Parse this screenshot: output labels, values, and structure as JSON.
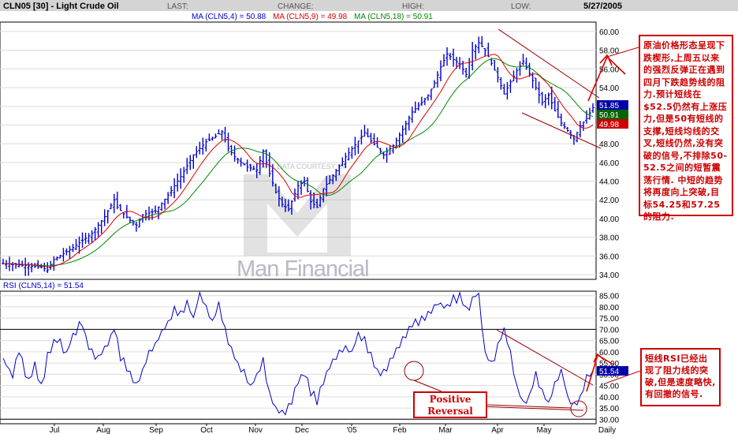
{
  "header": {
    "symbol": "CLN05 [30] - Light Crude Oil",
    "last_label": "LAST:",
    "change_label": "CHANGE:",
    "high_label": "HIGH:",
    "low_label": "LOW:",
    "date": "5/27/2005",
    "ma4_text": "MA (CLN5,4) = 50.88",
    "ma9_text": "MA (CLN5,9) = 49.98",
    "ma18_text": "MA (CLN5,18) = 50.91",
    "rsi_text": "RSI (CLN5,14) = 51.54"
  },
  "colors": {
    "price": "#0000cc",
    "ma4": "#0000cc",
    "ma9": "#dd0000",
    "ma18": "#008800",
    "annotation": "#cc0000",
    "header_bg": "#d4d4d4",
    "grid": "#dcdcdc"
  },
  "watermark": {
    "text1": "Man Financial",
    "text2": "CHART DATA COURTESY OF"
  },
  "notes": {
    "price_note": "原油价格形态呈现下跌楔形,上周五以来的强烈反弹正在遇到四月下跌趋势线的阻力.预计短线在$52.5仍然有上涨压力,但是50有短线的支撑,短线均线的交叉,短线仍然,没有突破的信号,不排除50-52.5之间的短暂震荡行情. 中短的趋势将再度向上突破,目标54.25和57.25的阻力.",
    "rsi_note": "短线RSI已经出现了阻力线的突破,但是速度略快,有回撤的信号.",
    "positive_reversal": "Positive Reversal"
  },
  "chart_data": [
    {
      "type": "ohlc",
      "title": "CLN05 [30] - Light Crude Oil",
      "ylim": [
        33.5,
        61.0
      ],
      "yticks": [
        "60.00",
        "58.00",
        "56.00",
        "54.00",
        "52.00",
        "50.00",
        "48.00",
        "46.00",
        "44.00",
        "42.00",
        "40.00",
        "38.00",
        "36.00",
        "34.00"
      ],
      "xticks": [
        "Jul",
        "Aug",
        "Sep",
        "Oct",
        "Nov",
        "Dec",
        "'05",
        "Feb",
        "Mar",
        "Apr",
        "May",
        "Daily"
      ],
      "grid": true,
      "series_names": [
        "MA (CLN5,4)",
        "MA (CLN5,9)",
        "MA (CLN5,18)"
      ],
      "close_anchors": [
        [
          0,
          35.2
        ],
        [
          6,
          35.0
        ],
        [
          12,
          34.8
        ],
        [
          14,
          34.5
        ],
        [
          16,
          35.6
        ],
        [
          22,
          36.9
        ],
        [
          28,
          38.4
        ],
        [
          32,
          40.2
        ],
        [
          35,
          42.0
        ],
        [
          36,
          41.2
        ],
        [
          40,
          39.8
        ],
        [
          42,
          39.3
        ],
        [
          44,
          40.4
        ],
        [
          48,
          40.8
        ],
        [
          52,
          42.5
        ],
        [
          56,
          44.5
        ],
        [
          60,
          46.8
        ],
        [
          64,
          48.2
        ],
        [
          67,
          48.8
        ],
        [
          69,
          49.3
        ],
        [
          71,
          47.5
        ],
        [
          73,
          46.6
        ],
        [
          75,
          46.0
        ],
        [
          77,
          45.5
        ],
        [
          80,
          45.2
        ],
        [
          82,
          47.2
        ],
        [
          84,
          44.8
        ],
        [
          86,
          42.8
        ],
        [
          88,
          41.5
        ],
        [
          90,
          41.0
        ],
        [
          93,
          43.5
        ],
        [
          95,
          44.0
        ],
        [
          97,
          41.8
        ],
        [
          99,
          41.2
        ],
        [
          101,
          43.2
        ],
        [
          104,
          44.6
        ],
        [
          108,
          46.6
        ],
        [
          112,
          48.3
        ],
        [
          114,
          49.2
        ],
        [
          116,
          48.3
        ],
        [
          118,
          47.6
        ],
        [
          120,
          46.8
        ],
        [
          123,
          47.8
        ],
        [
          126,
          49.5
        ],
        [
          129,
          51.4
        ],
        [
          132,
          52.4
        ],
        [
          134,
          53.2
        ],
        [
          136,
          54.5
        ],
        [
          138,
          56.2
        ],
        [
          140,
          57.6
        ],
        [
          142,
          57.0
        ],
        [
          144,
          56.5
        ],
        [
          146,
          55.4
        ],
        [
          148,
          58.0
        ],
        [
          150,
          58.8
        ],
        [
          152,
          58.0
        ],
        [
          154,
          56.6
        ],
        [
          156,
          55.1
        ],
        [
          158,
          53.3
        ],
        [
          160,
          54.6
        ],
        [
          162,
          55.8
        ],
        [
          164,
          56.8
        ],
        [
          166,
          55.5
        ],
        [
          168,
          54.0
        ],
        [
          170,
          52.4
        ],
        [
          172,
          53.2
        ],
        [
          174,
          51.5
        ],
        [
          176,
          50.2
        ],
        [
          178,
          49.4
        ],
        [
          180,
          48.5
        ],
        [
          182,
          49.9
        ],
        [
          184,
          50.7
        ],
        [
          186,
          51.85
        ]
      ],
      "last_values": {
        "close": 51.85,
        "ma18": 50.91,
        "ma9": 49.98,
        "ma4": 50.88
      },
      "annotations": [
        "Upper trendline from early-April high to late-May",
        "Lower trendline of falling wedge",
        "Red arrows pointing upward breakout"
      ]
    },
    {
      "type": "line",
      "title": "RSI (CLN5,14) = 51.54",
      "ylim": [
        28,
        87
      ],
      "yticks": [
        "85.00",
        "80.00",
        "75.00",
        "70.00",
        "65.00",
        "60.00",
        "55.00",
        "50.00",
        "45.00",
        "40.00",
        "35.00",
        "30.00"
      ],
      "reference_lines": [
        70,
        30
      ],
      "series": [
        {
          "name": "RSI (CLN5,14)",
          "values_anchors": [
            [
              0,
              56
            ],
            [
              3,
              50
            ],
            [
              5,
              60
            ],
            [
              8,
              46
            ],
            [
              10,
              54
            ],
            [
              12,
              44
            ],
            [
              14,
              58
            ],
            [
              17,
              66
            ],
            [
              20,
              60
            ],
            [
              23,
              70
            ],
            [
              25,
              72
            ],
            [
              27,
              63
            ],
            [
              30,
              56
            ],
            [
              32,
              62
            ],
            [
              35,
              70
            ],
            [
              37,
              58
            ],
            [
              40,
              50
            ],
            [
              42,
              46
            ],
            [
              44,
              52
            ],
            [
              47,
              62
            ],
            [
              50,
              68
            ],
            [
              52,
              73
            ],
            [
              54,
              78
            ],
            [
              56,
              77
            ],
            [
              58,
              82
            ],
            [
              60,
              75
            ],
            [
              62,
              86
            ],
            [
              64,
              80
            ],
            [
              66,
              74
            ],
            [
              68,
              80
            ],
            [
              70,
              70
            ],
            [
              72,
              60
            ],
            [
              74,
              55
            ],
            [
              76,
              52
            ],
            [
              78,
              45
            ],
            [
              80,
              50
            ],
            [
              82,
              56
            ],
            [
              84,
              40
            ],
            [
              86,
              35
            ],
            [
              88,
              33
            ],
            [
              90,
              35
            ],
            [
              93,
              46
            ],
            [
              95,
              50
            ],
            [
              97,
              42
            ],
            [
              99,
              38
            ],
            [
              101,
              46
            ],
            [
              104,
              56
            ],
            [
              107,
              62
            ],
            [
              110,
              60
            ],
            [
              112,
              68
            ],
            [
              114,
              65
            ],
            [
              116,
              58
            ],
            [
              118,
              52
            ],
            [
              120,
              51
            ],
            [
              122,
              56
            ],
            [
              125,
              64
            ],
            [
              128,
              70
            ],
            [
              131,
              74
            ],
            [
              134,
              77
            ],
            [
              137,
              82
            ],
            [
              140,
              80
            ],
            [
              142,
              83
            ],
            [
              144,
              84
            ],
            [
              146,
              78
            ],
            [
              148,
              84
            ],
            [
              150,
              86
            ],
            [
              152,
              60
            ],
            [
              154,
              55
            ],
            [
              156,
              62
            ],
            [
              158,
              70
            ],
            [
              160,
              59
            ],
            [
              162,
              44
            ],
            [
              164,
              38
            ],
            [
              166,
              40
            ],
            [
              168,
              50
            ],
            [
              170,
              42
            ],
            [
              172,
              37
            ],
            [
              174,
              46
            ],
            [
              176,
              52
            ],
            [
              178,
              40
            ],
            [
              180,
              35
            ],
            [
              182,
              40
            ],
            [
              184,
              48
            ],
            [
              186,
              51.54
            ]
          ]
        }
      ],
      "last_value": 51.54
    }
  ]
}
